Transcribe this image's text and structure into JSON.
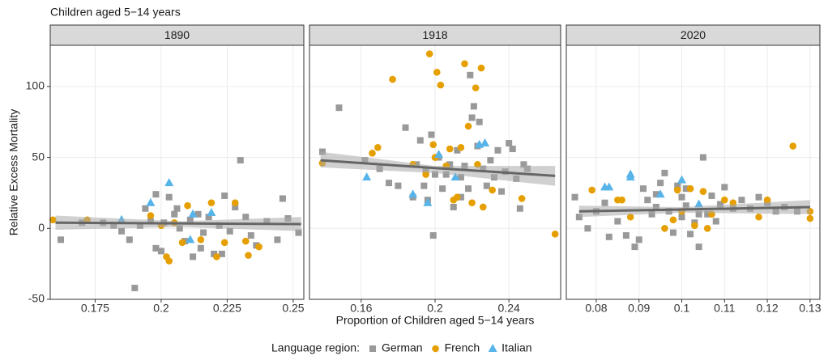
{
  "chart_data": {
    "type": "scatter",
    "title": "Children aged 5−14 years",
    "x_label": "Proportion of Children aged 5−14 years",
    "y_label": "Relative Excess Mortality",
    "legend_title": "Language region:",
    "ylim": [
      -50,
      129
    ],
    "yticks": [
      -50,
      0,
      50,
      100
    ],
    "grid": true,
    "series": [
      {
        "name": "German",
        "color": "#999999",
        "marker": "square"
      },
      {
        "name": "French",
        "color": "#E69F00",
        "marker": "circle"
      },
      {
        "name": "Italian",
        "color": "#56B4E9",
        "marker": "triangle"
      }
    ],
    "panels": [
      {
        "title": "1890",
        "xlim": [
          0.158,
          0.254
        ],
        "xticks": [
          0.175,
          0.2,
          0.225,
          0.25
        ],
        "series": [
          {
            "x": [
              0.162,
              0.17,
              0.178,
              0.182,
              0.185,
              0.188,
              0.19,
              0.192,
              0.194,
              0.196,
              0.198,
              0.2,
              0.201,
              0.203,
              0.205,
              0.207,
              0.209,
              0.211,
              0.212,
              0.214,
              0.216,
              0.218,
              0.22,
              0.222,
              0.224,
              0.226,
              0.228,
              0.23,
              0.232,
              0.234,
              0.236,
              0.24,
              0.244,
              0.246,
              0.248,
              0.252,
              0.198,
              0.206,
              0.215,
              0.223
            ],
            "values": [
              -8,
              4,
              4,
              2,
              -2,
              -8,
              -42,
              2,
              14,
              5,
              -14,
              -16,
              4,
              22,
              10,
              0,
              -9,
              6,
              -20,
              10,
              -3,
              8,
              -18,
              2,
              23,
              -2,
              15,
              48,
              8,
              -5,
              -12,
              5,
              -8,
              21,
              7,
              -3,
              24,
              14,
              -14,
              -18
            ]
          },
          {
            "x": [
              0.159,
              0.172,
              0.196,
              0.2,
              0.202,
              0.203,
              0.205,
              0.208,
              0.21,
              0.215,
              0.219,
              0.221,
              0.224,
              0.228,
              0.232,
              0.233,
              0.237
            ],
            "values": [
              6,
              6,
              9,
              2,
              -20,
              -23,
              4,
              -10,
              16,
              -8,
              18,
              -20,
              -10,
              18,
              -9,
              -19,
              -13
            ]
          },
          {
            "x": [
              0.185,
              0.196,
              0.203,
              0.212,
              0.219,
              0.211
            ],
            "values": [
              6,
              18,
              32,
              10,
              11,
              -8
            ]
          }
        ],
        "trend": {
          "x": [
            0.16,
            0.207,
            0.253
          ],
          "values": [
            4,
            3.5,
            3
          ],
          "lower": [
            -1,
            1,
            -2
          ],
          "upper": [
            9,
            5,
            8
          ]
        }
      },
      {
        "title": "1918",
        "xlim": [
          0.132,
          0.268
        ],
        "xticks": [
          0.16,
          0.2,
          0.24
        ],
        "series": [
          {
            "x": [
              0.139,
              0.148,
              0.162,
              0.17,
              0.175,
              0.18,
              0.184,
              0.188,
              0.19,
              0.192,
              0.194,
              0.196,
              0.198,
              0.199,
              0.2,
              0.202,
              0.204,
              0.206,
              0.208,
              0.21,
              0.212,
              0.214,
              0.216,
              0.218,
              0.22,
              0.221,
              0.223,
              0.224,
              0.226,
              0.228,
              0.23,
              0.232,
              0.234,
              0.236,
              0.238,
              0.24,
              0.242,
              0.244,
              0.246,
              0.248,
              0.25,
              0.219,
              0.214,
              0.195
            ],
            "values": [
              54,
              85,
              48,
              42,
              32,
              30,
              71,
              22,
              45,
              62,
              30,
              20,
              66,
              -5,
              38,
              50,
              28,
              38,
              45,
              15,
              55,
              36,
              44,
              28,
              78,
              86,
              58,
              75,
              42,
              30,
              48,
              36,
              55,
              26,
              40,
              60,
              56,
              35,
              14,
              45,
              42,
              108,
              22,
              40
            ]
          },
          {
            "x": [
              0.139,
              0.166,
              0.169,
              0.177,
              0.188,
              0.195,
              0.197,
              0.199,
              0.2,
              0.201,
              0.203,
              0.206,
              0.208,
              0.21,
              0.214,
              0.216,
              0.218,
              0.22,
              0.222,
              0.223,
              0.225,
              0.226,
              0.231,
              0.247,
              0.265,
              0.212
            ],
            "values": [
              46,
              53,
              57,
              105,
              45,
              38,
              123,
              59,
              50,
              110,
              101,
              44,
              56,
              20,
              57,
              116,
              72,
              18,
              99,
              45,
              113,
              15,
              27,
              21,
              -4,
              22
            ]
          },
          {
            "x": [
              0.163,
              0.188,
              0.196,
              0.202,
              0.211,
              0.224,
              0.227
            ],
            "values": [
              36,
              24,
              18,
              52,
              36,
              59,
              60
            ]
          }
        ],
        "trend": {
          "x": [
            0.138,
            0.2,
            0.265
          ],
          "values": [
            48,
            42.5,
            37
          ],
          "lower": [
            43,
            39,
            30
          ],
          "upper": [
            54,
            44,
            44
          ]
        }
      },
      {
        "title": "2020",
        "xlim": [
          0.073,
          0.1323
        ],
        "xticks": [
          0.08,
          0.09,
          0.1,
          0.11,
          0.12,
          0.13
        ],
        "series": [
          {
            "x": [
              0.075,
              0.076,
              0.078,
              0.08,
              0.082,
              0.083,
              0.085,
              0.087,
              0.089,
              0.09,
              0.091,
              0.092,
              0.093,
              0.094,
              0.095,
              0.096,
              0.097,
              0.098,
              0.099,
              0.1,
              0.1,
              0.101,
              0.102,
              0.103,
              0.104,
              0.105,
              0.106,
              0.107,
              0.108,
              0.109,
              0.11,
              0.112,
              0.114,
              0.116,
              0.118,
              0.12,
              0.122,
              0.124,
              0.127,
              0.094,
              0.101,
              0.104
            ],
            "values": [
              22,
              8,
              0,
              12,
              18,
              -6,
              5,
              -5,
              -13,
              -8,
              28,
              20,
              10,
              24,
              32,
              39,
              12,
              -3,
              30,
              8,
              22,
              16,
              -4,
              4,
              -13,
              50,
              10,
              23,
              5,
              17,
              29,
              14,
              20,
              14,
              22,
              18,
              12,
              15,
              12,
              15,
              28,
              10
            ]
          },
          {
            "x": [
              0.079,
              0.085,
              0.086,
              0.088,
              0.096,
              0.098,
              0.099,
              0.1,
              0.102,
              0.103,
              0.105,
              0.106,
              0.107,
              0.11,
              0.112,
              0.12,
              0.126,
              0.13,
              0.13,
              0.118
            ],
            "values": [
              27,
              20,
              20,
              8,
              0,
              6,
              27,
              12,
              28,
              2,
              26,
              0,
              10,
              20,
              18,
              20,
              58,
              12,
              7,
              8
            ]
          },
          {
            "x": [
              0.082,
              0.083,
              0.088,
              0.088,
              0.095,
              0.1,
              0.104
            ],
            "values": [
              29,
              29,
              36,
              38,
              24,
              34,
              17
            ]
          }
        ],
        "trend": {
          "x": [
            0.076,
            0.1,
            0.13
          ],
          "values": [
            12,
            13.3,
            15
          ],
          "lower": [
            8,
            11,
            10
          ],
          "upper": [
            16,
            15,
            20
          ]
        }
      }
    ]
  }
}
